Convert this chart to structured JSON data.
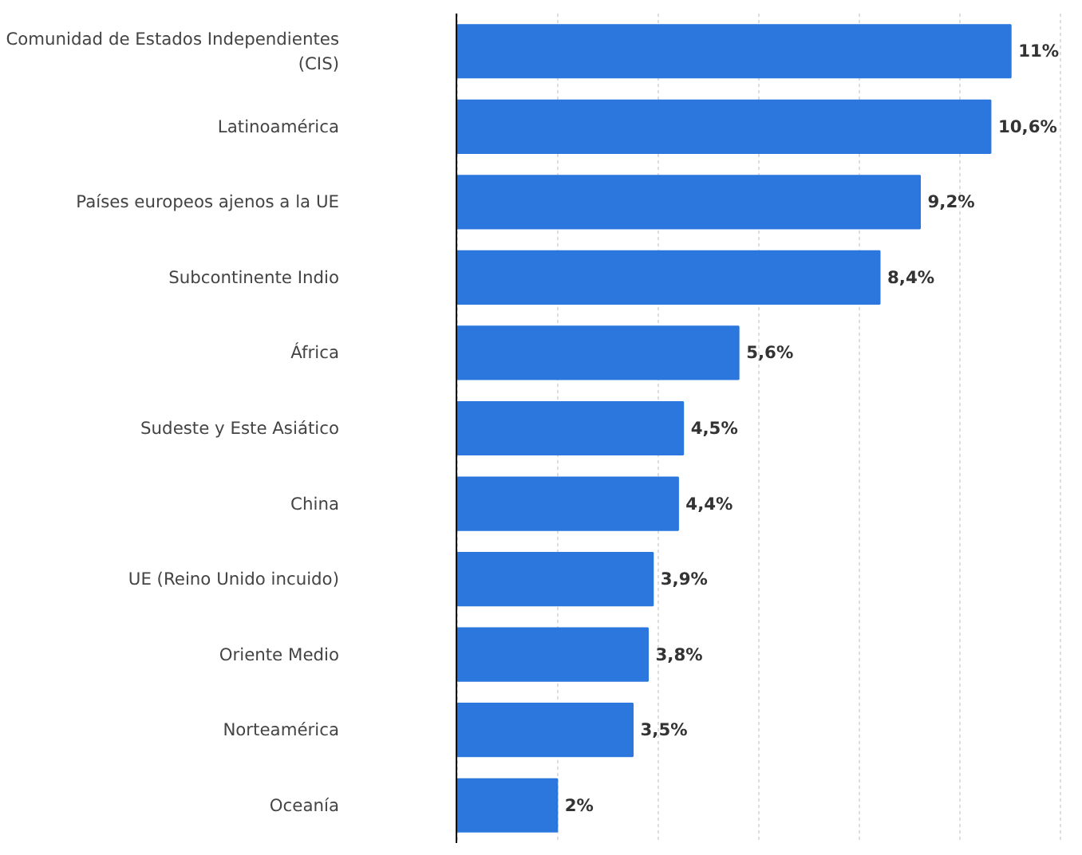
{
  "chart_data": {
    "type": "bar",
    "orientation": "horizontal",
    "categories": [
      "Comunidad de Estados Independientes (CIS)",
      "Latinoamérica",
      "Países europeos ajenos a la UE",
      "Subcontinente Indio",
      "África",
      "Sudeste y Este Asiático",
      "China",
      "UE (Reino Unido incuido)",
      "Oriente Medio",
      "Norteamérica",
      "Oceanía"
    ],
    "values": [
      11,
      10.6,
      9.2,
      8.4,
      5.6,
      4.5,
      4.4,
      3.9,
      3.8,
      3.5,
      2
    ],
    "value_labels": [
      "11%",
      "10,6%",
      "9,2%",
      "8,4%",
      "5,6%",
      "4,5%",
      "4,4%",
      "3,9%",
      "3,8%",
      "3,5%",
      "2%"
    ],
    "color": "#2b77de",
    "grid": "x",
    "tick_labels": "y"
  }
}
